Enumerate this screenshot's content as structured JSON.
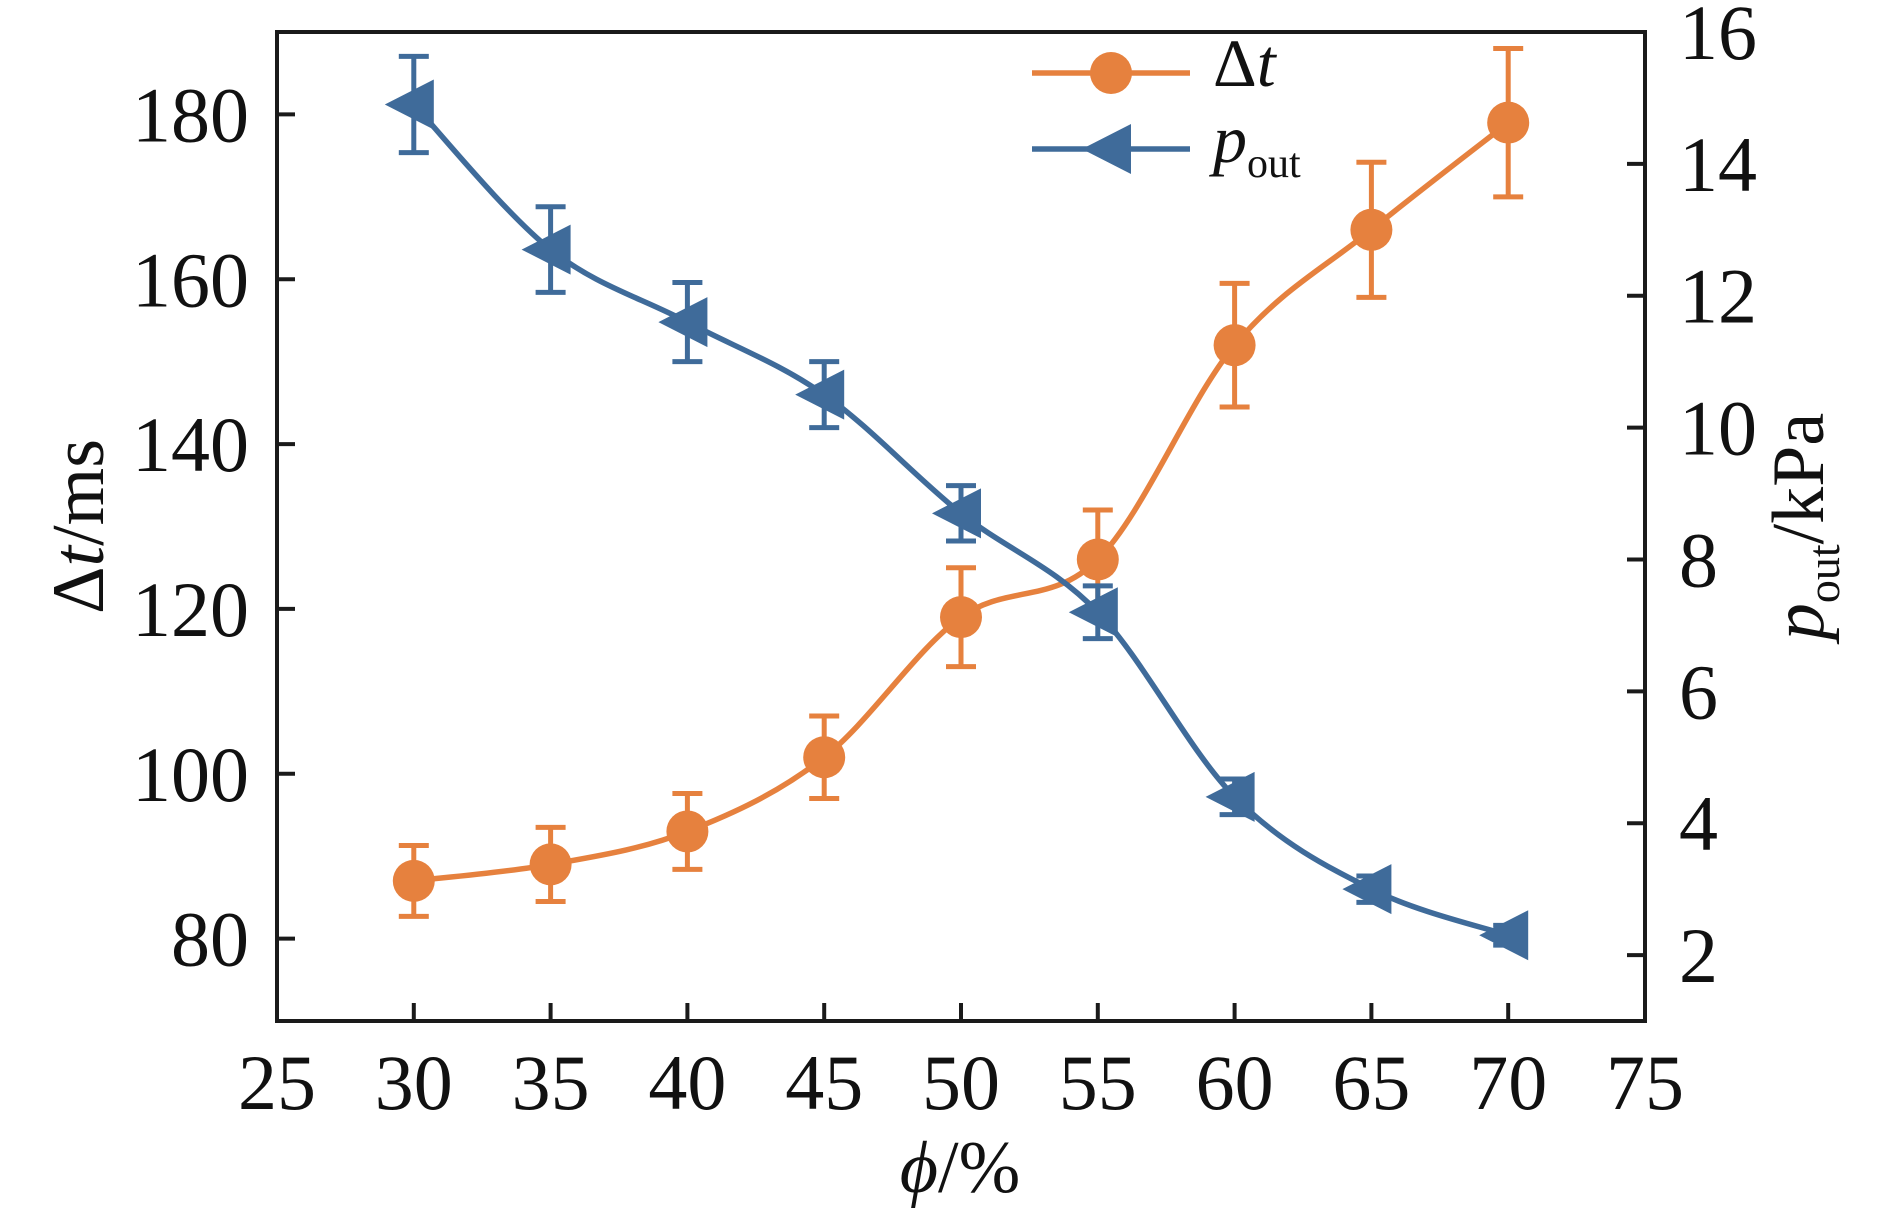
{
  "chart_data": {
    "type": "line",
    "title": "",
    "x": [
      30,
      35,
      40,
      45,
      50,
      55,
      60,
      65,
      70
    ],
    "series": [
      {
        "id": "dt",
        "name": "Δt",
        "label_parts": [
          {
            "text": "Δ"
          },
          {
            "text": "t",
            "italic": true
          }
        ],
        "axis": "left",
        "color": "#E6813E",
        "marker": "circle",
        "values": [
          87,
          89,
          93,
          102,
          119,
          126,
          152,
          166,
          179
        ],
        "errors": [
          4.3,
          4.5,
          4.6,
          5,
          6,
          6,
          7.5,
          8.2,
          9
        ]
      },
      {
        "id": "pout",
        "name": "p_out",
        "label_parts": [
          {
            "text": "p",
            "italic": true
          },
          {
            "text": "out",
            "sub": true
          }
        ],
        "axis": "right",
        "color": "#3F6B9A",
        "marker": "triangle-left",
        "values": [
          14.9,
          12.7,
          11.6,
          10.5,
          8.7,
          7.2,
          4.4,
          3.0,
          2.3
        ],
        "errors": [
          0.73,
          0.65,
          0.6,
          0.5,
          0.42,
          0.4,
          0.27,
          0.2,
          0.15
        ]
      }
    ],
    "xlabel": "ϕ/%",
    "xlabel_parts": [
      {
        "text": "ϕ",
        "italic": true
      },
      {
        "text": "/%"
      }
    ],
    "ylabel_left": "Δt/ms",
    "ylabel_left_parts": [
      {
        "text": "Δ"
      },
      {
        "text": "t",
        "italic": true
      },
      {
        "text": "/ms"
      }
    ],
    "ylabel_right": "p_out/kPa",
    "ylabel_right_parts": [
      {
        "text": "p",
        "italic": true
      },
      {
        "text": "out",
        "sub": true
      },
      {
        "text": "/kPa"
      }
    ],
    "xlim": [
      25,
      75
    ],
    "xticks": [
      25,
      30,
      35,
      40,
      45,
      50,
      55,
      60,
      65,
      70,
      75
    ],
    "ylim_left": [
      70,
      190
    ],
    "yticks_left": [
      80,
      100,
      120,
      140,
      160,
      180
    ],
    "ylim_right": [
      1,
      16
    ],
    "yticks_right": [
      2,
      4,
      6,
      8,
      10,
      12,
      14,
      16
    ],
    "grid": false,
    "legend_position": "top-right-inside",
    "legend": [
      "Δt",
      "p_out"
    ],
    "axis_color": "#1a1a1a",
    "background_color": "#ffffff",
    "error_bars": true,
    "line_style": "smooth"
  }
}
